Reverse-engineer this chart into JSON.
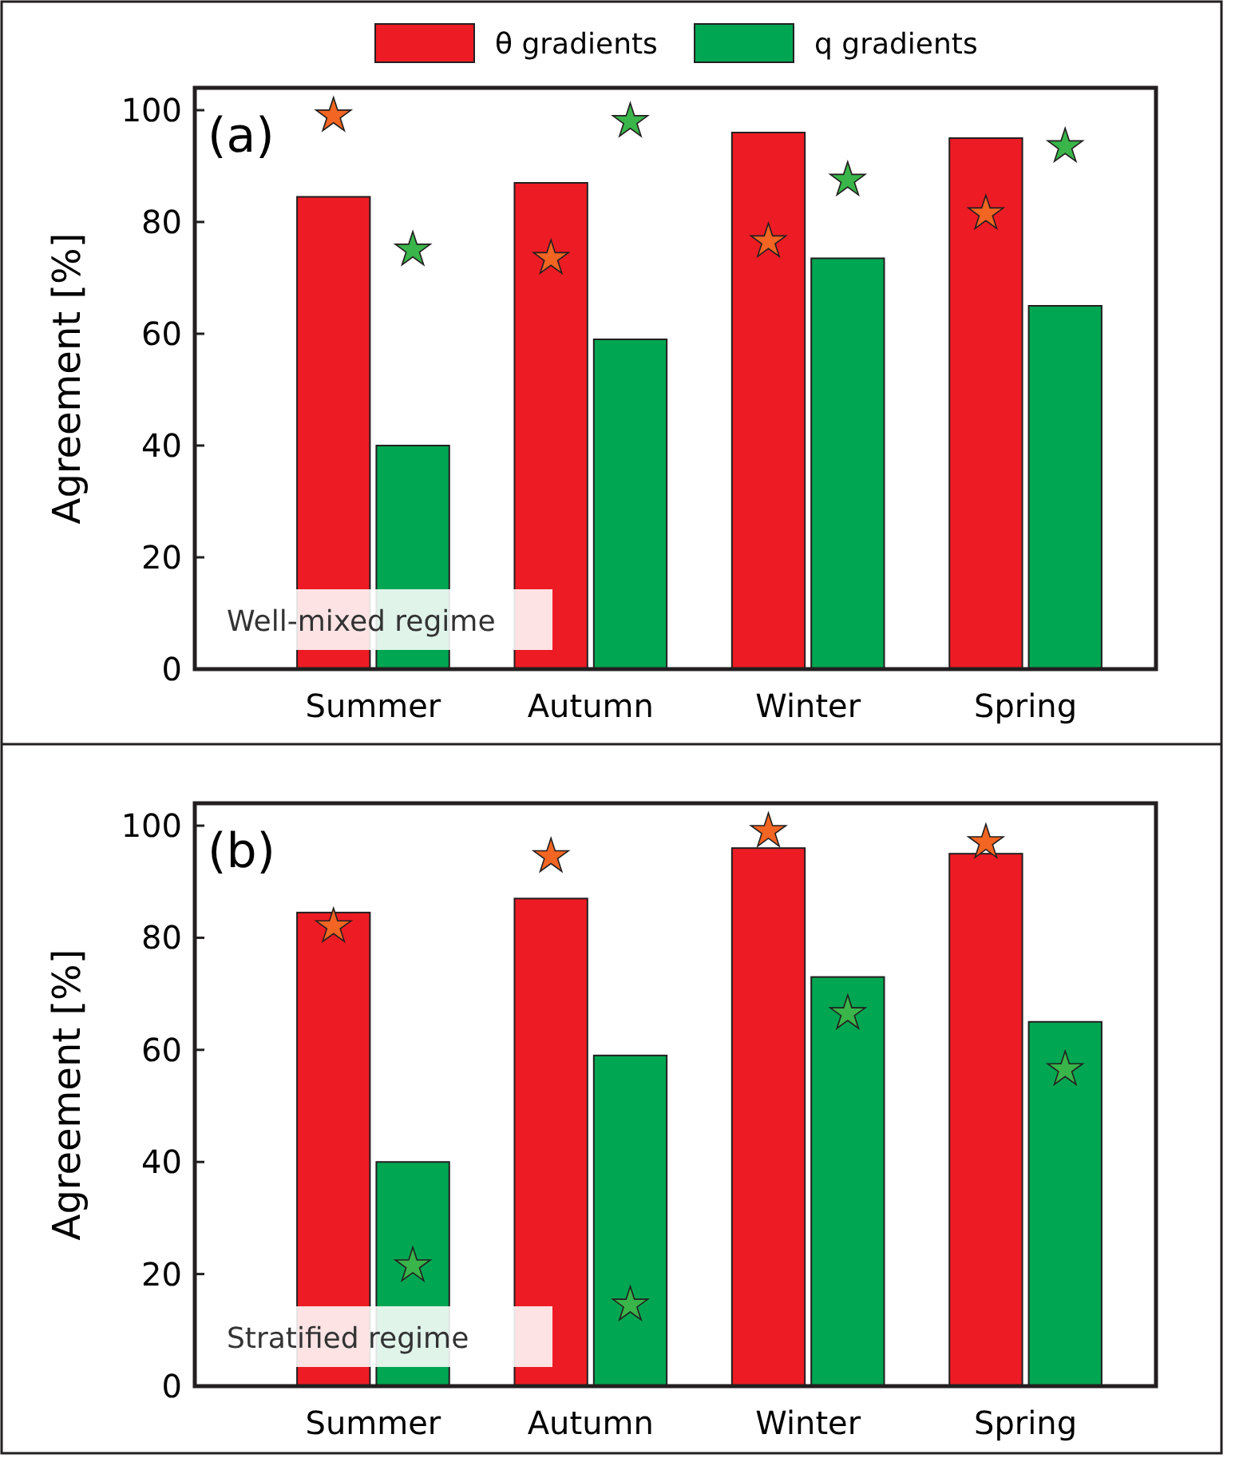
{
  "chart_data": [
    {
      "type": "bar",
      "ylabel": "Agreement [%]",
      "categories": [
        "Summer",
        "Autumn",
        "Winter",
        "Spring"
      ],
      "ylim": [
        0,
        104
      ],
      "yticks": [
        0,
        20,
        40,
        60,
        80,
        100
      ],
      "legend": "top",
      "marker": "star",
      "annotations": [
        "(a)",
        "Well-mixed regime"
      ],
      "series": [
        {
          "name": "θ gradients",
          "color": "#ed1c24",
          "values": [
            84.5,
            87,
            96,
            95
          ]
        },
        {
          "name": "q gradients",
          "color": "#00a651",
          "values": [
            40,
            59,
            73.5,
            65
          ]
        },
        {
          "type": "scatter",
          "color": "#f26522",
          "x": [
            "Summer",
            "Autumn",
            "Winter",
            "Spring"
          ],
          "values": [
            99,
            73.5,
            76.5,
            81.5
          ]
        },
        {
          "type": "scatter",
          "color": "#39b54a",
          "x": [
            "Summer",
            "Autumn",
            "Winter",
            "Spring"
          ],
          "values": [
            75,
            98,
            87.5,
            93.5
          ]
        }
      ]
    },
    {
      "type": "bar",
      "ylabel": "Agreement [%]",
      "categories": [
        "Summer",
        "Autumn",
        "Winter",
        "Spring"
      ],
      "ylim": [
        0,
        104
      ],
      "yticks": [
        0,
        20,
        40,
        60,
        80,
        100
      ],
      "marker": "star",
      "annotations": [
        "(b)",
        "Stratified regime"
      ],
      "series": [
        {
          "color": "#ed1c24",
          "values": [
            84.5,
            87,
            96,
            95
          ]
        },
        {
          "color": "#00a651",
          "values": [
            40,
            59,
            73,
            65
          ]
        },
        {
          "type": "scatter",
          "color": "#f26522",
          "x": [
            "Summer",
            "Autumn",
            "Winter",
            "Spring"
          ],
          "values": [
            82,
            94.5,
            99,
            97
          ]
        },
        {
          "type": "scatter",
          "color": "#39b54a",
          "x": [
            "Summer",
            "Autumn",
            "Winter",
            "Spring"
          ],
          "values": [
            21.5,
            14.5,
            66.5,
            56.5
          ]
        }
      ]
    }
  ]
}
